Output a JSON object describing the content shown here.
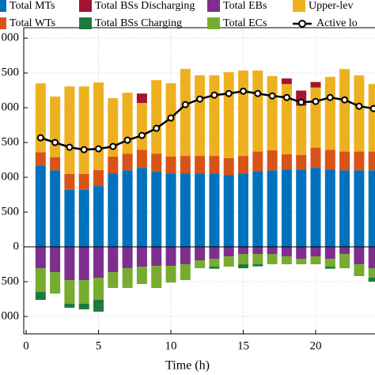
{
  "chart_data": {
    "type": "bar",
    "x_label": "Time (h)",
    "x": [
      1,
      2,
      3,
      4,
      5,
      6,
      7,
      8,
      9,
      10,
      11,
      12,
      13,
      14,
      15,
      16,
      17,
      18,
      19,
      20,
      21,
      22,
      23,
      24
    ],
    "xlim": [
      0,
      25
    ],
    "xticks": [
      0,
      5,
      10,
      15,
      20
    ],
    "ylim": [
      -1250,
      3150
    ],
    "yticks": [
      {
        "value": -1000,
        "label": "000"
      },
      {
        "value": -500,
        "label": "500"
      },
      0,
      {
        "value": 500,
        "label": "500"
      },
      {
        "value": 1000,
        "label": "000"
      },
      {
        "value": 1500,
        "label": "500"
      },
      {
        "value": 2000,
        "label": "000"
      },
      {
        "value": 2500,
        "label": "500"
      },
      {
        "value": 3000,
        "label": "000"
      }
    ],
    "grid": true,
    "series": [
      {
        "name": "Total MTs",
        "color": "#0072bd",
        "values": [
          1170,
          1100,
          820,
          820,
          875,
          1057,
          1100,
          1136,
          1080,
          1057,
          1057,
          1057,
          1057,
          1034,
          1057,
          1090,
          1100,
          1113,
          1113,
          1136,
          1113,
          1100,
          1100,
          1100
        ]
      },
      {
        "name": "Total WTs",
        "color": "#d95319",
        "values": [
          190,
          190,
          230,
          230,
          230,
          240,
          240,
          260,
          260,
          240,
          250,
          250,
          250,
          240,
          250,
          280,
          290,
          220,
          210,
          290,
          280,
          270,
          270,
          270
        ]
      },
      {
        "name": "Total BSs Discharging",
        "color": "#a2142f",
        "values": [
          0,
          0,
          0,
          0,
          0,
          0,
          0,
          136,
          0,
          0,
          0,
          0,
          0,
          0,
          0,
          0,
          0,
          80,
          216,
          80,
          0,
          0,
          0,
          0
        ]
      },
      {
        "name": "Total BSs Charging",
        "color": "#1e7a3c",
        "values": [
          -114,
          0,
          -57,
          -80,
          -170,
          0,
          0,
          0,
          0,
          0,
          0,
          0,
          -30,
          0,
          -57,
          -30,
          0,
          0,
          0,
          0,
          -30,
          0,
          0,
          -57
        ]
      },
      {
        "name": "Total EBs",
        "color": "#7e2f8e",
        "values": [
          -307,
          -364,
          -477,
          -477,
          -443,
          -364,
          -307,
          -284,
          -273,
          -273,
          -250,
          -193,
          -170,
          -136,
          -102,
          -102,
          -102,
          -136,
          -170,
          -136,
          -170,
          -102,
          -250,
          -307
        ]
      },
      {
        "name": "Total ECs",
        "color": "#77ac30",
        "values": [
          -341,
          -307,
          -341,
          -341,
          -318,
          -227,
          -284,
          -250,
          -318,
          -239,
          -227,
          -114,
          -114,
          -148,
          -148,
          -148,
          -148,
          -114,
          -80,
          -114,
          -114,
          -205,
          -170,
          -136
        ]
      },
      {
        "name": "Upper-lev",
        "color": "#edb120",
        "values": [
          990,
          870,
          1256,
          1256,
          1258,
          840,
          876,
          672,
          1057,
          1055,
          1250,
          1158,
          1158,
          1237,
          1227,
          1164,
          1064,
          1007,
          707,
          864,
          1050,
          1186,
          1095,
          970
        ]
      },
      {
        "name": "Active lo",
        "color": "#000000",
        "type": "line",
        "values": [
          1568,
          1500,
          1432,
          1397,
          1409,
          1443,
          1534,
          1602,
          1704,
          1852,
          2045,
          2124,
          2181,
          2204,
          2238,
          2204,
          2170,
          2147,
          2079,
          2090,
          2147,
          2113,
          2022,
          1988
        ]
      }
    ]
  }
}
